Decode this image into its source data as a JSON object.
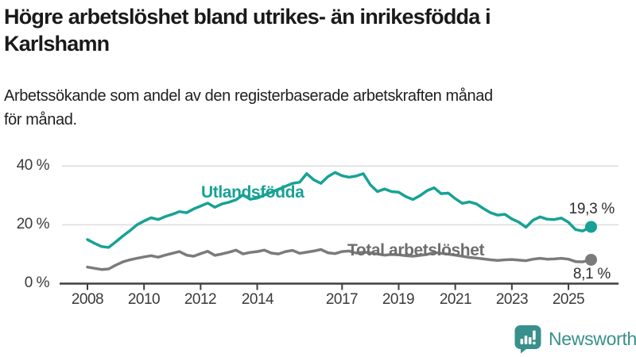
{
  "header": {
    "title_line1": "Högre arbetslöshet bland utrikes- än inrikesfödda i",
    "title_line2": "Karlshamn",
    "subtitle_line1": "Arbetssökande som andel av den registerbaserade arbetskraften månad",
    "subtitle_line2": "för månad."
  },
  "chart": {
    "y_tick_labels": [
      "40 %",
      "20 %",
      "0 %"
    ],
    "x_tick_labels": [
      "2008",
      "2010",
      "2012",
      "2014",
      "2017",
      "2019",
      "2021",
      "2023",
      "2025"
    ]
  },
  "chart_data": {
    "type": "line",
    "title": "Högre arbetslöshet bland utrikes- än inrikesfödda i Karlshamn",
    "subtitle": "Arbetssökande som andel av den registerbaserade arbetskraften månad för månad.",
    "unit": "%",
    "xlim": [
      2007.0,
      2026.6
    ],
    "ylim": [
      0,
      44
    ],
    "y_gridline_values": [
      20,
      40
    ],
    "y_tick_values": [
      40,
      20,
      0
    ],
    "x_tick_years": [
      2008,
      2010,
      2012,
      2014,
      2017,
      2019,
      2021,
      2023,
      2025
    ],
    "grid": "horizontal-only",
    "legend_position": "inline-labels",
    "series": [
      {
        "name": "Utlandsfödda",
        "color": "#17a295",
        "end_label": "19,3 %",
        "end_value": 19.3,
        "points": [
          [
            2008.0,
            15.0
          ],
          [
            2008.25,
            13.7
          ],
          [
            2008.5,
            12.6
          ],
          [
            2008.75,
            12.3
          ],
          [
            2009.0,
            14.2
          ],
          [
            2009.25,
            16.2
          ],
          [
            2009.5,
            18.0
          ],
          [
            2009.75,
            20.0
          ],
          [
            2010.0,
            21.3
          ],
          [
            2010.25,
            22.4
          ],
          [
            2010.5,
            21.8
          ],
          [
            2010.75,
            22.8
          ],
          [
            2011.0,
            23.6
          ],
          [
            2011.25,
            24.5
          ],
          [
            2011.5,
            24.1
          ],
          [
            2011.75,
            25.4
          ],
          [
            2012.0,
            26.4
          ],
          [
            2012.25,
            27.4
          ],
          [
            2012.5,
            26.0
          ],
          [
            2012.75,
            27.1
          ],
          [
            2013.0,
            27.7
          ],
          [
            2013.25,
            28.5
          ],
          [
            2013.5,
            30.2
          ],
          [
            2013.75,
            28.7
          ],
          [
            2014.0,
            29.1
          ],
          [
            2014.25,
            30.1
          ],
          [
            2014.5,
            31.1
          ],
          [
            2014.75,
            32.1
          ],
          [
            2015.0,
            33.1
          ],
          [
            2015.25,
            34.1
          ],
          [
            2015.5,
            34.5
          ],
          [
            2015.75,
            37.4
          ],
          [
            2016.0,
            35.3
          ],
          [
            2016.25,
            34.1
          ],
          [
            2016.5,
            36.4
          ],
          [
            2016.75,
            37.8
          ],
          [
            2017.0,
            36.7
          ],
          [
            2017.25,
            36.2
          ],
          [
            2017.5,
            36.6
          ],
          [
            2017.75,
            37.4
          ],
          [
            2018.0,
            33.6
          ],
          [
            2018.25,
            31.3
          ],
          [
            2018.5,
            32.2
          ],
          [
            2018.75,
            31.3
          ],
          [
            2019.0,
            31.1
          ],
          [
            2019.25,
            29.6
          ],
          [
            2019.5,
            28.6
          ],
          [
            2019.75,
            29.9
          ],
          [
            2020.0,
            31.6
          ],
          [
            2020.25,
            32.6
          ],
          [
            2020.5,
            30.6
          ],
          [
            2020.75,
            30.8
          ],
          [
            2021.0,
            28.9
          ],
          [
            2021.25,
            27.3
          ],
          [
            2021.5,
            27.8
          ],
          [
            2021.75,
            27.1
          ],
          [
            2022.0,
            25.5
          ],
          [
            2022.25,
            24.1
          ],
          [
            2022.5,
            23.3
          ],
          [
            2022.75,
            23.6
          ],
          [
            2023.0,
            22.0
          ],
          [
            2023.25,
            20.9
          ],
          [
            2023.5,
            19.2
          ],
          [
            2023.75,
            21.6
          ],
          [
            2024.0,
            22.7
          ],
          [
            2024.25,
            21.9
          ],
          [
            2024.5,
            21.8
          ],
          [
            2024.75,
            22.3
          ],
          [
            2025.0,
            20.9
          ],
          [
            2025.25,
            18.4
          ],
          [
            2025.5,
            17.9
          ],
          [
            2025.8,
            19.3
          ]
        ]
      },
      {
        "name": "Total arbetslöshet",
        "color": "#7b7b7b",
        "end_label": "8,1 %",
        "end_value": 8.1,
        "points": [
          [
            2008.0,
            5.6
          ],
          [
            2008.25,
            5.2
          ],
          [
            2008.5,
            4.8
          ],
          [
            2008.75,
            5.0
          ],
          [
            2009.0,
            6.3
          ],
          [
            2009.25,
            7.4
          ],
          [
            2009.5,
            8.1
          ],
          [
            2009.75,
            8.6
          ],
          [
            2010.0,
            9.1
          ],
          [
            2010.25,
            9.5
          ],
          [
            2010.5,
            9.0
          ],
          [
            2010.75,
            9.7
          ],
          [
            2011.0,
            10.3
          ],
          [
            2011.25,
            10.9
          ],
          [
            2011.5,
            9.7
          ],
          [
            2011.75,
            9.3
          ],
          [
            2012.0,
            10.2
          ],
          [
            2012.25,
            11.0
          ],
          [
            2012.5,
            9.6
          ],
          [
            2012.75,
            10.1
          ],
          [
            2013.0,
            10.7
          ],
          [
            2013.25,
            11.4
          ],
          [
            2013.5,
            10.1
          ],
          [
            2013.75,
            10.6
          ],
          [
            2014.0,
            10.9
          ],
          [
            2014.25,
            11.4
          ],
          [
            2014.5,
            10.4
          ],
          [
            2014.75,
            10.1
          ],
          [
            2015.0,
            10.9
          ],
          [
            2015.25,
            11.3
          ],
          [
            2015.5,
            10.3
          ],
          [
            2015.75,
            10.7
          ],
          [
            2016.0,
            11.1
          ],
          [
            2016.25,
            11.6
          ],
          [
            2016.5,
            10.5
          ],
          [
            2016.75,
            10.2
          ],
          [
            2017.0,
            10.9
          ],
          [
            2017.25,
            11.1
          ],
          [
            2017.5,
            10.4
          ],
          [
            2017.75,
            10.7
          ],
          [
            2018.0,
            10.5
          ],
          [
            2018.25,
            10.1
          ],
          [
            2018.5,
            9.7
          ],
          [
            2018.75,
            9.9
          ],
          [
            2019.0,
            9.8
          ],
          [
            2019.25,
            9.5
          ],
          [
            2019.5,
            9.3
          ],
          [
            2019.75,
            9.6
          ],
          [
            2020.0,
            9.9
          ],
          [
            2020.25,
            10.6
          ],
          [
            2020.5,
            10.3
          ],
          [
            2020.75,
            10.0
          ],
          [
            2021.0,
            9.7
          ],
          [
            2021.25,
            9.3
          ],
          [
            2021.5,
            8.9
          ],
          [
            2021.75,
            8.7
          ],
          [
            2022.0,
            8.4
          ],
          [
            2022.25,
            8.1
          ],
          [
            2022.5,
            7.9
          ],
          [
            2022.75,
            8.1
          ],
          [
            2023.0,
            8.2
          ],
          [
            2023.25,
            8.0
          ],
          [
            2023.5,
            7.8
          ],
          [
            2023.75,
            8.3
          ],
          [
            2024.0,
            8.6
          ],
          [
            2024.25,
            8.3
          ],
          [
            2024.5,
            8.4
          ],
          [
            2024.75,
            8.6
          ],
          [
            2025.0,
            8.3
          ],
          [
            2025.25,
            7.5
          ],
          [
            2025.5,
            7.4
          ],
          [
            2025.8,
            8.1
          ]
        ]
      }
    ]
  },
  "branding": {
    "name": "Newsworthy"
  },
  "colors": {
    "accent_teal": "#17a295",
    "line_gray": "#7b7b7b",
    "axis": "#3f3f3f",
    "gridline": "#dbdbdb",
    "text_dark": "#1a1a1a",
    "brand_teal": "#37908b"
  }
}
